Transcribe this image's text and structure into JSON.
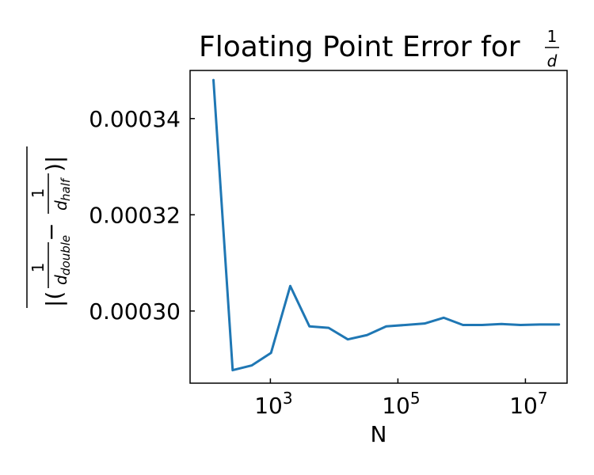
{
  "chart_data": {
    "type": "line",
    "title": "Floating Point Error for",
    "title_fraction": {
      "numerator": "1",
      "denominator": "d"
    },
    "xlabel": "N",
    "ylabel": {
      "prefix": "|(",
      "left_numerator": "1",
      "left_denominator": "d",
      "left_subscript": "double",
      "minus": "−",
      "right_numerator": "1",
      "right_denominator": "d",
      "right_subscript": "half",
      "suffix": ")|"
    },
    "x_scale": "log",
    "xlim": [
      55,
      45000000
    ],
    "ylim": [
      0.000285,
      0.00035
    ],
    "xticks": [
      {
        "value": 1000,
        "base": "10",
        "exp": "3"
      },
      {
        "value": 100000,
        "base": "10",
        "exp": "5"
      },
      {
        "value": 10000000,
        "base": "10",
        "exp": "7"
      }
    ],
    "yticks": [
      {
        "value": 0.0003,
        "label": "0.00030"
      },
      {
        "value": 0.00032,
        "label": "0.00032"
      },
      {
        "value": 0.00034,
        "label": "0.00034"
      }
    ],
    "grid": false,
    "series": [
      {
        "color": "#1f77b4",
        "x": [
          128,
          256,
          512,
          1024,
          2048,
          4096,
          8192,
          16384,
          32768,
          65536,
          131072,
          262144,
          524288,
          1048576,
          2097152,
          4194304,
          8388608,
          16777216,
          33554432
        ],
        "y": [
          0.000348,
          0.0002877,
          0.0002887,
          0.0002913,
          0.0003052,
          0.0002968,
          0.0002965,
          0.0002941,
          0.000295,
          0.0002968,
          0.0002971,
          0.0002974,
          0.0002986,
          0.0002971,
          0.0002971,
          0.0002973,
          0.0002971,
          0.0002972,
          0.0002972
        ]
      }
    ]
  }
}
